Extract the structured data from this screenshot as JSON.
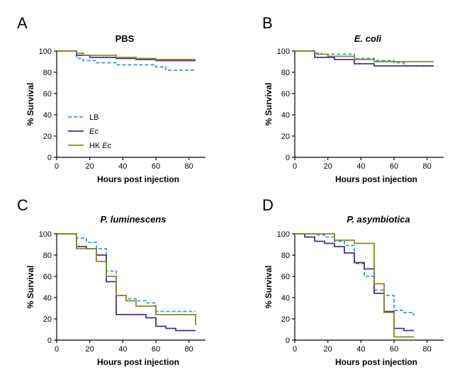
{
  "colors": {
    "LB": "#2b9be8",
    "Ec": "#4b2d8f",
    "HK Ec": "#8c8a17"
  },
  "legend": [
    {
      "label": "LB",
      "key": "LB",
      "dashed": true,
      "italic": false
    },
    {
      "label": "Ec",
      "key": "Ec",
      "dashed": false,
      "italic": true
    },
    {
      "label": "HK Ec",
      "key": "HK Ec",
      "dashed": false,
      "italic": "partial"
    }
  ],
  "chart_data": [
    {
      "panel": "A",
      "title": "PBS",
      "title_italic": false,
      "type": "line",
      "step": true,
      "xlabel": "Hours post injection",
      "ylabel": "% Survival",
      "xlim": [
        0,
        84
      ],
      "ylim": [
        0,
        100
      ],
      "xticks": [
        0,
        20,
        40,
        60,
        80
      ],
      "yticks": [
        0,
        20,
        40,
        60,
        80,
        100
      ],
      "legend_shown": true,
      "series": [
        {
          "name": "LB",
          "x": [
            0,
            12,
            16,
            24,
            36,
            60,
            66,
            84
          ],
          "y": [
            100,
            93,
            91,
            89,
            87,
            85,
            82,
            82
          ]
        },
        {
          "name": "Ec",
          "x": [
            0,
            12,
            20,
            36,
            48,
            60,
            84
          ],
          "y": [
            100,
            96,
            94,
            93,
            92,
            91,
            91
          ]
        },
        {
          "name": "HK Ec",
          "x": [
            0,
            12,
            16,
            24,
            36,
            48,
            60,
            84
          ],
          "y": [
            100,
            98,
            96,
            96,
            94,
            93,
            92,
            92
          ]
        }
      ]
    },
    {
      "panel": "B",
      "title": "E. coli",
      "title_italic": true,
      "type": "line",
      "step": true,
      "xlabel": "Hours post injection",
      "ylabel": "% Survival",
      "xlim": [
        0,
        84
      ],
      "ylim": [
        0,
        100
      ],
      "xticks": [
        0,
        20,
        40,
        60,
        80
      ],
      "yticks": [
        0,
        20,
        40,
        60,
        80,
        100
      ],
      "legend_shown": false,
      "series": [
        {
          "name": "LB",
          "x": [
            0,
            12,
            16,
            36,
            48,
            60,
            66,
            84
          ],
          "y": [
            100,
            98,
            97,
            93,
            91,
            89,
            86,
            86
          ]
        },
        {
          "name": "Ec",
          "x": [
            0,
            12,
            24,
            36,
            48,
            84
          ],
          "y": [
            100,
            94,
            92,
            88,
            86,
            86
          ]
        },
        {
          "name": "HK Ec",
          "x": [
            0,
            12,
            20,
            36,
            48,
            60,
            84
          ],
          "y": [
            100,
            97,
            95,
            92,
            90,
            90,
            90
          ]
        }
      ]
    },
    {
      "panel": "C",
      "title": "P. luminescens",
      "title_italic": true,
      "type": "line",
      "step": true,
      "xlabel": "Hours post injection",
      "ylabel": "% Survival",
      "xlim": [
        0,
        84
      ],
      "ylim": [
        0,
        100
      ],
      "xticks": [
        0,
        20,
        40,
        60,
        80
      ],
      "yticks": [
        0,
        20,
        40,
        60,
        80,
        100
      ],
      "legend_shown": false,
      "series": [
        {
          "name": "LB",
          "x": [
            0,
            12,
            18,
            24,
            30,
            36,
            42,
            48,
            54,
            60,
            84
          ],
          "y": [
            100,
            96,
            92,
            86,
            65,
            42,
            39,
            37,
            35,
            27,
            27
          ]
        },
        {
          "name": "Ec",
          "x": [
            0,
            12,
            18,
            24,
            30,
            36,
            54,
            60,
            66,
            72,
            78,
            84
          ],
          "y": [
            100,
            88,
            86,
            80,
            55,
            24,
            21,
            13,
            11,
            9,
            9,
            9
          ]
        },
        {
          "name": "HK Ec",
          "x": [
            0,
            12,
            24,
            30,
            36,
            42,
            48,
            60,
            84
          ],
          "y": [
            100,
            86,
            74,
            60,
            42,
            37,
            32,
            24,
            14
          ]
        }
      ]
    },
    {
      "panel": "D",
      "title": "P. asymbiotica",
      "title_italic": true,
      "type": "line",
      "step": true,
      "xlabel": "Hours post injection",
      "ylabel": "% Survival",
      "xlim": [
        0,
        84
      ],
      "ylim": [
        0,
        100
      ],
      "xticks": [
        0,
        20,
        40,
        60,
        80
      ],
      "yticks": [
        0,
        20,
        40,
        60,
        80,
        100
      ],
      "legend_shown": false,
      "series": [
        {
          "name": "LB",
          "x": [
            0,
            12,
            18,
            24,
            30,
            36,
            42,
            48,
            54,
            60,
            66,
            72
          ],
          "y": [
            100,
            99,
            97,
            93,
            89,
            72,
            60,
            47,
            42,
            28,
            26,
            23
          ]
        },
        {
          "name": "Ec",
          "x": [
            0,
            6,
            12,
            18,
            24,
            30,
            36,
            42,
            48,
            54,
            60,
            66,
            72
          ],
          "y": [
            100,
            97,
            93,
            91,
            88,
            82,
            73,
            67,
            44,
            27,
            11,
            9,
            9
          ]
        },
        {
          "name": "HK Ec",
          "x": [
            0,
            24,
            36,
            48,
            54,
            60,
            66,
            72
          ],
          "y": [
            100,
            94,
            91,
            53,
            26,
            3,
            3,
            3
          ]
        }
      ]
    }
  ]
}
